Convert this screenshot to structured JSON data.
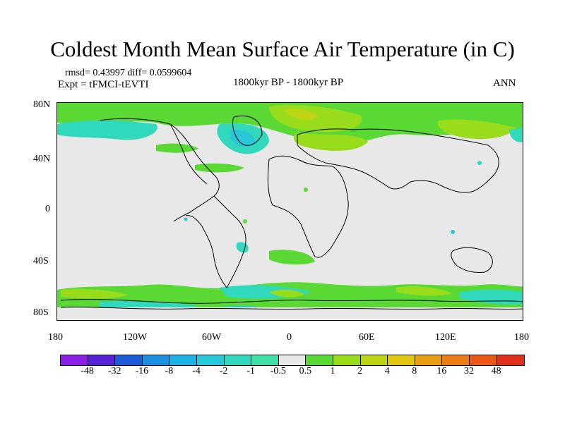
{
  "title": "Coldest Month Mean Surface Air Temperature (in C)",
  "stats": "rmsd= 0.43997 diff= 0.0599604",
  "experiment": "Expt = tFMCI-tEVTI",
  "period": "1800kyr BP - 1800kyr BP",
  "season": "ANN",
  "y_ticks": [
    "80N",
    "40N",
    "0",
    "40S",
    "80S"
  ],
  "x_ticks": [
    "180",
    "120W",
    "60W",
    "0",
    "60E",
    "120E",
    "180"
  ],
  "colorbar": {
    "colors": [
      "#8a20e6",
      "#5a22d8",
      "#1e5ad8",
      "#1c8fe0",
      "#1cb4e4",
      "#28c8d8",
      "#30d8bc",
      "#40e0a8",
      "#e8e8e8",
      "#5ad834",
      "#98dc1c",
      "#bcd414",
      "#e0c812",
      "#e89e12",
      "#ec7c14",
      "#ec5818",
      "#e0301a"
    ],
    "labels": [
      "-48",
      "-32",
      "-16",
      "-8",
      "-4",
      "-2",
      "-1",
      "-0.5",
      "0.5",
      "1",
      "2",
      "4",
      "8",
      "16",
      "32",
      "48"
    ]
  },
  "colors": {
    "background": "#e8e8e8",
    "cool": "#30d8bc",
    "cooler": "#28c8d8",
    "mild_warm": "#5ad834",
    "warm": "#98dc1c",
    "warmer": "#bcd414"
  }
}
